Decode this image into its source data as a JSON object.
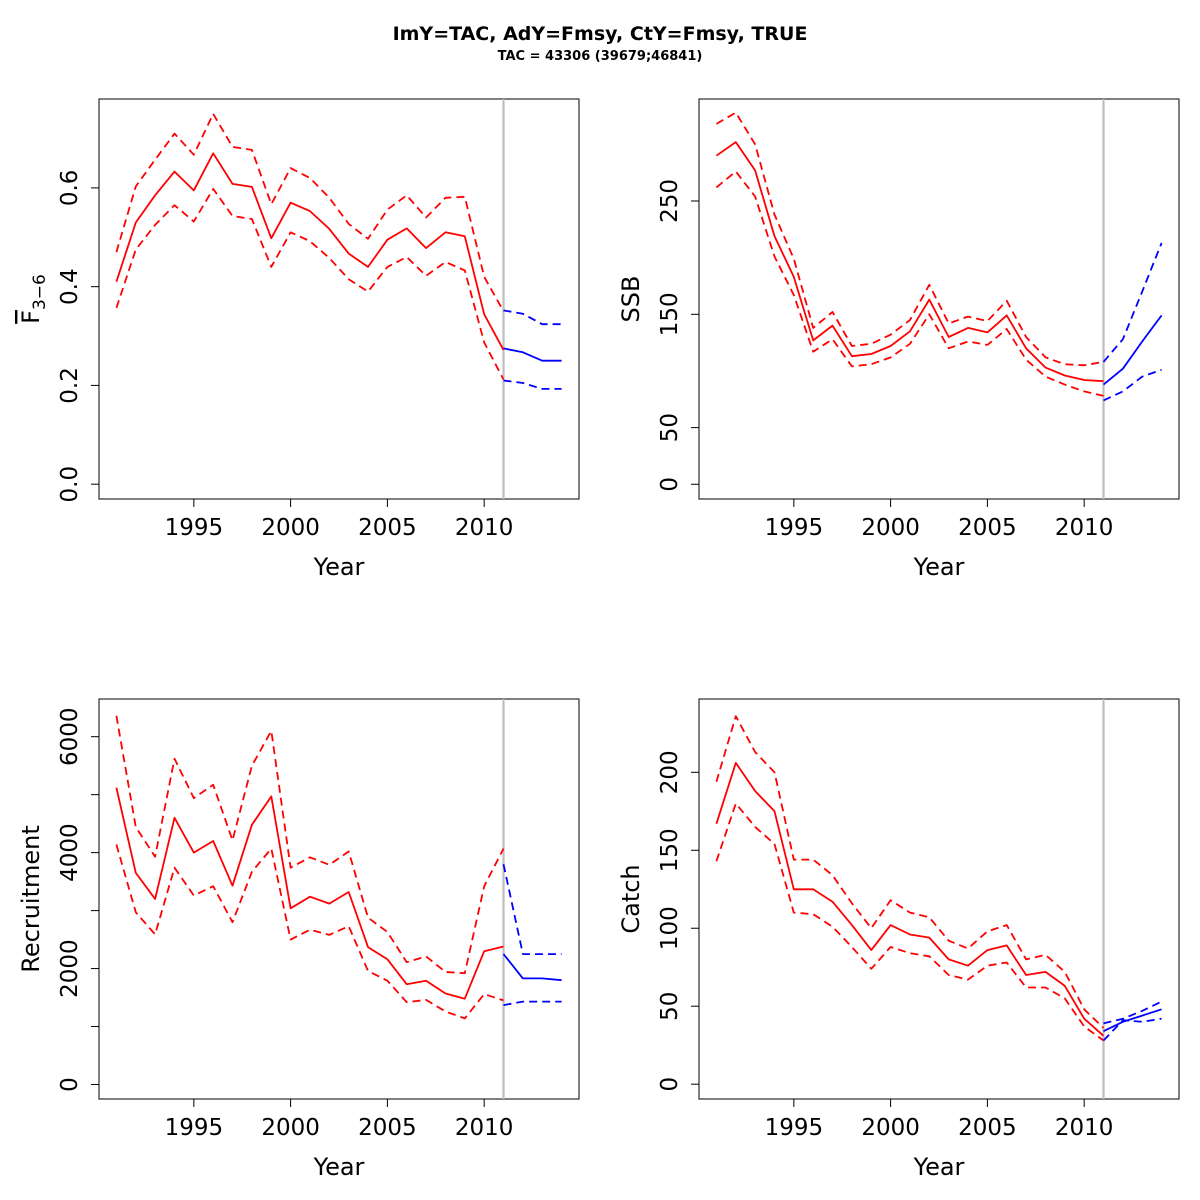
{
  "figure": {
    "title": "ImY=TAC, AdY=Fmsy, CtY=Fmsy, TRUE",
    "subtitle": "TAC = 43306 (39679;46841)"
  },
  "colors": {
    "historical": "#ff0000",
    "forecast": "#0000ff",
    "divider": "#bebebe",
    "axis": "#000000"
  },
  "chart_data": [
    {
      "id": "fbar",
      "type": "line",
      "xlabel": "Year",
      "ylabel": "F3-6",
      "ylabel_main": "F",
      "ylabel_sub": "3−6",
      "xlim": [
        1990.1,
        2014.9
      ],
      "ylim": [
        -0.03,
        0.78
      ],
      "xticks": [
        1995,
        2000,
        2005,
        2010
      ],
      "yticks": [
        0.0,
        0.2,
        0.4,
        0.6
      ],
      "ytick_labels": [
        "0.0",
        "0.2",
        "0.4",
        "0.6"
      ],
      "vline_x": 2011,
      "series": [
        {
          "role": "historical",
          "style": "solid",
          "x": [
            1991,
            1992,
            1993,
            1994,
            1995,
            1996,
            1997,
            1998,
            1999,
            2000,
            2001,
            2002,
            2003,
            2004,
            2005,
            2006,
            2007,
            2008,
            2009,
            2010,
            2011
          ],
          "y": [
            0.41,
            0.53,
            0.585,
            0.633,
            0.595,
            0.67,
            0.608,
            0.602,
            0.498,
            0.57,
            0.553,
            0.517,
            0.467,
            0.44,
            0.495,
            0.518,
            0.478,
            0.51,
            0.502,
            0.344,
            0.272
          ]
        },
        {
          "role": "historical",
          "style": "dashed",
          "x": [
            1991,
            1992,
            1993,
            1994,
            1995,
            1996,
            1997,
            1998,
            1999,
            2000,
            2001,
            2002,
            2003,
            2004,
            2005,
            2006,
            2007,
            2008,
            2009,
            2010,
            2011
          ],
          "y": [
            0.47,
            0.603,
            0.657,
            0.71,
            0.667,
            0.75,
            0.683,
            0.677,
            0.567,
            0.64,
            0.62,
            0.58,
            0.527,
            0.497,
            0.556,
            0.585,
            0.54,
            0.58,
            0.582,
            0.42,
            0.35
          ]
        },
        {
          "role": "historical",
          "style": "dashed",
          "x": [
            1991,
            1992,
            1993,
            1994,
            1995,
            1996,
            1997,
            1998,
            1999,
            2000,
            2001,
            2002,
            2003,
            2004,
            2005,
            2006,
            2007,
            2008,
            2009,
            2010,
            2011
          ],
          "y": [
            0.357,
            0.475,
            0.525,
            0.565,
            0.532,
            0.598,
            0.543,
            0.537,
            0.44,
            0.51,
            0.492,
            0.458,
            0.415,
            0.39,
            0.44,
            0.46,
            0.422,
            0.45,
            0.433,
            0.287,
            0.212
          ]
        },
        {
          "role": "forecast",
          "style": "solid",
          "x": [
            2011,
            2012,
            2013,
            2014
          ],
          "y": [
            0.275,
            0.267,
            0.25,
            0.25
          ]
        },
        {
          "role": "forecast",
          "style": "dashed",
          "x": [
            2011,
            2012,
            2013,
            2014
          ],
          "y": [
            0.352,
            0.345,
            0.324,
            0.324
          ]
        },
        {
          "role": "forecast",
          "style": "dashed",
          "x": [
            2011,
            2012,
            2013,
            2014
          ],
          "y": [
            0.21,
            0.205,
            0.193,
            0.193
          ]
        }
      ]
    },
    {
      "id": "ssb",
      "type": "line",
      "xlabel": "Year",
      "ylabel": "SSB",
      "xlim": [
        1990.1,
        2014.9
      ],
      "ylim": [
        -13,
        340
      ],
      "xticks": [
        1995,
        2000,
        2005,
        2010
      ],
      "yticks": [
        0,
        50,
        150,
        250
      ],
      "ytick_labels": [
        "0",
        "50",
        "150",
        "250"
      ],
      "vline_x": 2011,
      "series": [
        {
          "role": "historical",
          "style": "solid",
          "x": [
            1991,
            1992,
            1993,
            1994,
            1995,
            1996,
            1997,
            1998,
            1999,
            2000,
            2001,
            2002,
            2003,
            2004,
            2005,
            2006,
            2007,
            2008,
            2009,
            2010,
            2011
          ],
          "y": [
            290,
            302,
            277,
            219,
            183,
            127,
            140,
            113,
            115,
            122,
            135,
            163,
            130,
            138,
            134,
            149,
            120,
            103,
            96,
            92,
            91
          ]
        },
        {
          "role": "historical",
          "style": "dashed",
          "x": [
            1991,
            1992,
            1993,
            1994,
            1995,
            1996,
            1997,
            1998,
            1999,
            2000,
            2001,
            2002,
            2003,
            2004,
            2005,
            2006,
            2007,
            2008,
            2009,
            2010,
            2011
          ],
          "y": [
            318,
            328,
            300,
            238,
            199,
            138,
            152,
            122,
            124,
            132,
            145,
            176,
            142,
            148,
            144,
            162,
            130,
            112,
            106,
            105,
            108
          ]
        },
        {
          "role": "historical",
          "style": "dashed",
          "x": [
            1991,
            1992,
            1993,
            1994,
            1995,
            1996,
            1997,
            1998,
            1999,
            2000,
            2001,
            2002,
            2003,
            2004,
            2005,
            2006,
            2007,
            2008,
            2009,
            2010,
            2011
          ],
          "y": [
            262,
            276,
            254,
            201,
            167,
            117,
            128,
            104,
            106,
            112,
            124,
            150,
            120,
            126,
            123,
            137,
            110,
            95,
            88,
            82,
            78
          ]
        },
        {
          "role": "forecast",
          "style": "solid",
          "x": [
            2011,
            2012,
            2013,
            2014
          ],
          "y": [
            88,
            102,
            126,
            149
          ]
        },
        {
          "role": "forecast",
          "style": "dashed",
          "x": [
            2011,
            2012,
            2013,
            2014
          ],
          "y": [
            108,
            128,
            170,
            213
          ]
        },
        {
          "role": "forecast",
          "style": "dashed",
          "x": [
            2011,
            2012,
            2013,
            2014
          ],
          "y": [
            74,
            82,
            95,
            101
          ]
        }
      ]
    },
    {
      "id": "recruitment",
      "type": "line",
      "xlabel": "Year",
      "ylabel": "Recruitment",
      "xlim": [
        1990.1,
        2014.9
      ],
      "ylim": [
        -250,
        6650
      ],
      "xticks": [
        1995,
        2000,
        2005,
        2010
      ],
      "yticks": [
        0,
        2000,
        4000,
        6000
      ],
      "ytick_labels": [
        "0",
        "2000",
        "4000",
        "6000"
      ],
      "yminor": [
        1000,
        3000,
        5000
      ],
      "vline_x": 2011,
      "series": [
        {
          "role": "historical",
          "style": "solid",
          "x": [
            1991,
            1992,
            1993,
            1994,
            1995,
            1996,
            1997,
            1998,
            1999,
            2000,
            2001,
            2002,
            2003,
            2004,
            2005,
            2006,
            2007,
            2008,
            2009,
            2010,
            2011
          ],
          "y": [
            5120,
            3650,
            3200,
            4600,
            4000,
            4200,
            3430,
            4480,
            4970,
            3040,
            3240,
            3120,
            3320,
            2370,
            2160,
            1730,
            1790,
            1570,
            1480,
            2300,
            2380
          ]
        },
        {
          "role": "historical",
          "style": "dashed",
          "x": [
            1991,
            1992,
            1993,
            1994,
            1995,
            1996,
            1997,
            1998,
            1999,
            2000,
            2001,
            2002,
            2003,
            2004,
            2005,
            2006,
            2007,
            2008,
            2009,
            2010,
            2011
          ],
          "y": [
            6360,
            4440,
            3930,
            5620,
            4940,
            5170,
            4210,
            5500,
            6100,
            3740,
            3920,
            3790,
            4020,
            2880,
            2630,
            2110,
            2210,
            1940,
            1920,
            3420,
            4070
          ]
        },
        {
          "role": "historical",
          "style": "dashed",
          "x": [
            1991,
            1992,
            1993,
            1994,
            1995,
            1996,
            1997,
            1998,
            1999,
            2000,
            2001,
            2002,
            2003,
            2004,
            2005,
            2006,
            2007,
            2008,
            2009,
            2010,
            2011
          ],
          "y": [
            4140,
            2970,
            2590,
            3740,
            3260,
            3420,
            2800,
            3670,
            4070,
            2500,
            2670,
            2580,
            2730,
            1960,
            1790,
            1420,
            1460,
            1260,
            1140,
            1560,
            1450
          ]
        },
        {
          "role": "forecast",
          "style": "solid",
          "x": [
            2011,
            2012,
            2013,
            2014
          ],
          "y": [
            2250,
            1830,
            1830,
            1800
          ]
        },
        {
          "role": "forecast",
          "style": "dashed",
          "x": [
            2011,
            2012,
            2013,
            2014
          ],
          "y": [
            3800,
            2250,
            2250,
            2250
          ]
        },
        {
          "role": "forecast",
          "style": "dashed",
          "x": [
            2011,
            2012,
            2013,
            2014
          ],
          "y": [
            1370,
            1430,
            1430,
            1430
          ]
        }
      ]
    },
    {
      "id": "catch",
      "type": "line",
      "xlabel": "Year",
      "ylabel": "Catch",
      "xlim": [
        1990.1,
        2014.9
      ],
      "ylim": [
        -9.5,
        247
      ],
      "xticks": [
        1995,
        2000,
        2005,
        2010
      ],
      "yticks": [
        0,
        50,
        100,
        150,
        200
      ],
      "ytick_labels": [
        "0",
        "50",
        "100",
        "150",
        "200"
      ],
      "vline_x": 2011,
      "series": [
        {
          "role": "historical",
          "style": "solid",
          "x": [
            1991,
            1992,
            1993,
            1994,
            1995,
            1996,
            1997,
            1998,
            1999,
            2000,
            2001,
            2002,
            2003,
            2004,
            2005,
            2006,
            2007,
            2008,
            2009,
            2010,
            2011
          ],
          "y": [
            167,
            206,
            188,
            175,
            125,
            125,
            117,
            102,
            86,
            102,
            96,
            94,
            80,
            76,
            86,
            89,
            70,
            72,
            63,
            42,
            31
          ]
        },
        {
          "role": "historical",
          "style": "dashed",
          "x": [
            1991,
            1992,
            1993,
            1994,
            1995,
            1996,
            1997,
            1998,
            1999,
            2000,
            2001,
            2002,
            2003,
            2004,
            2005,
            2006,
            2007,
            2008,
            2009,
            2010,
            2011
          ],
          "y": [
            194,
            236,
            213,
            200,
            144,
            144,
            134,
            116,
            100,
            118,
            110,
            107,
            92,
            87,
            98,
            102,
            80,
            83,
            72,
            48,
            36
          ]
        },
        {
          "role": "historical",
          "style": "dashed",
          "x": [
            1991,
            1992,
            1993,
            1994,
            1995,
            1996,
            1997,
            1998,
            1999,
            2000,
            2001,
            2002,
            2003,
            2004,
            2005,
            2006,
            2007,
            2008,
            2009,
            2010,
            2011
          ],
          "y": [
            143,
            180,
            165,
            154,
            110,
            109,
            101,
            88,
            74,
            88,
            84,
            82,
            70,
            67,
            76,
            78,
            62,
            62,
            55,
            37,
            28
          ]
        },
        {
          "role": "forecast",
          "style": "solid",
          "x": [
            2011,
            2012,
            2013,
            2014
          ],
          "y": [
            34,
            40,
            44,
            48
          ]
        },
        {
          "role": "forecast",
          "style": "dashed",
          "x": [
            2011,
            2012,
            2013,
            2014
          ],
          "y": [
            39,
            42,
            47,
            53
          ]
        },
        {
          "role": "forecast",
          "style": "dashed",
          "x": [
            2011,
            2012,
            2013,
            2014
          ],
          "y": [
            28,
            41,
            40,
            42
          ]
        }
      ]
    }
  ]
}
